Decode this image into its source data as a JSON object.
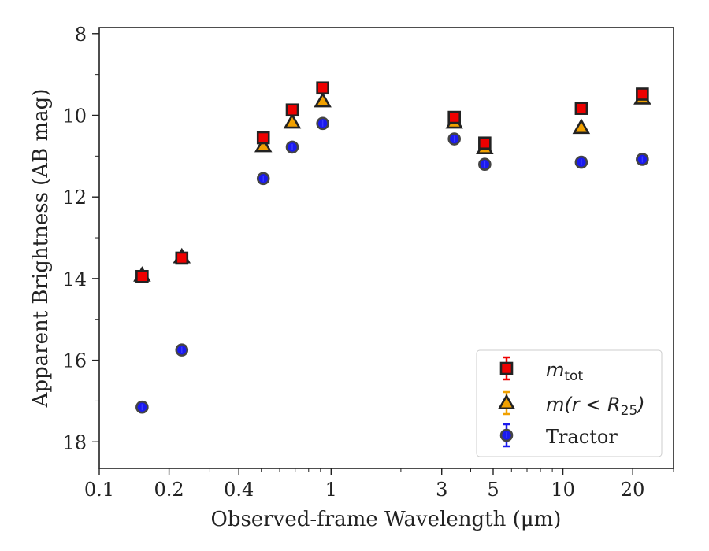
{
  "chart_data": {
    "type": "scatter",
    "xlabel": "Observed-frame Wavelength (μm)",
    "ylabel": "Apparent Brightness (AB mag)",
    "x_scale": "log",
    "xlim": [
      0.1,
      30
    ],
    "ylim": [
      18.65,
      7.85
    ],
    "y_inverted": true,
    "x_ticks": [
      0.1,
      0.2,
      0.4,
      1,
      3,
      5,
      10,
      20
    ],
    "x_tick_labels": [
      "0.1",
      "0.2",
      "0.4",
      "1",
      "3",
      "5",
      "10",
      "20"
    ],
    "y_ticks": [
      8,
      10,
      12,
      14,
      16,
      18
    ],
    "y_tick_labels": [
      "8",
      "10",
      "12",
      "14",
      "16",
      "18"
    ],
    "grid": false,
    "legend_position": "bottom-right",
    "series": [
      {
        "name": "m_tot",
        "legend_base": "m",
        "legend_sub": "tot",
        "marker": "square",
        "color": "#ee0000",
        "x": [
          0.153,
          0.227,
          0.51,
          0.68,
          0.92,
          3.4,
          4.6,
          12.0,
          22.0
        ],
        "y": [
          13.95,
          13.5,
          10.55,
          9.87,
          9.33,
          10.05,
          10.68,
          9.83,
          9.48
        ]
      },
      {
        "name": "m(r < R25)",
        "legend_base": "m(r < R",
        "legend_sub": "25",
        "legend_end": ")",
        "marker": "triangle",
        "color": "#f0a000",
        "x": [
          0.153,
          0.227,
          0.51,
          0.68,
          0.92,
          3.4,
          4.6,
          12.0,
          22.0
        ],
        "y": [
          13.92,
          13.47,
          10.75,
          10.17,
          9.65,
          10.17,
          10.8,
          10.3,
          9.58
        ]
      },
      {
        "name": "Tractor",
        "marker": "circle",
        "color": "#1a1aee",
        "x": [
          0.153,
          0.227,
          0.51,
          0.68,
          0.92,
          3.4,
          4.6,
          12.0,
          22.0
        ],
        "y": [
          17.15,
          15.75,
          11.55,
          10.78,
          10.2,
          10.58,
          11.2,
          11.15,
          11.08
        ]
      }
    ]
  }
}
